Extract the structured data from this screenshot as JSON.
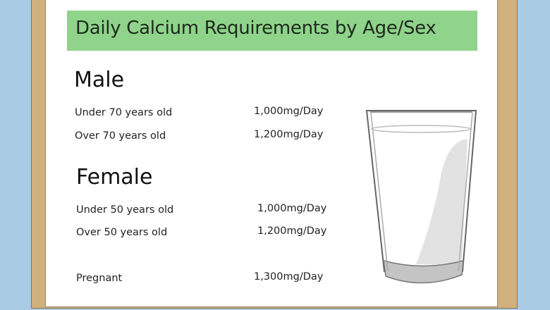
{
  "title": "Daily Calcium Requirements by Age/Sex",
  "sections": [
    {
      "heading": "Male",
      "rows": [
        {
          "label": "Under 70 years old",
          "value": "1,000mg/Day"
        },
        {
          "label": "Over 70 years old",
          "value": "1,200mg/Day"
        }
      ]
    },
    {
      "heading": "Female",
      "rows": [
        {
          "label": "Under 50 years old",
          "value": "1,000mg/Day"
        },
        {
          "label": "Over 50 years old",
          "value": "1,200mg/Day"
        },
        {
          "label": "Pregnant",
          "value": "1,300mg/Day"
        }
      ]
    }
  ],
  "colors": {
    "banner": "#90d38b",
    "frame": "#d2b07c",
    "background": "#a9cbe4"
  },
  "illustration": "milk-glass"
}
